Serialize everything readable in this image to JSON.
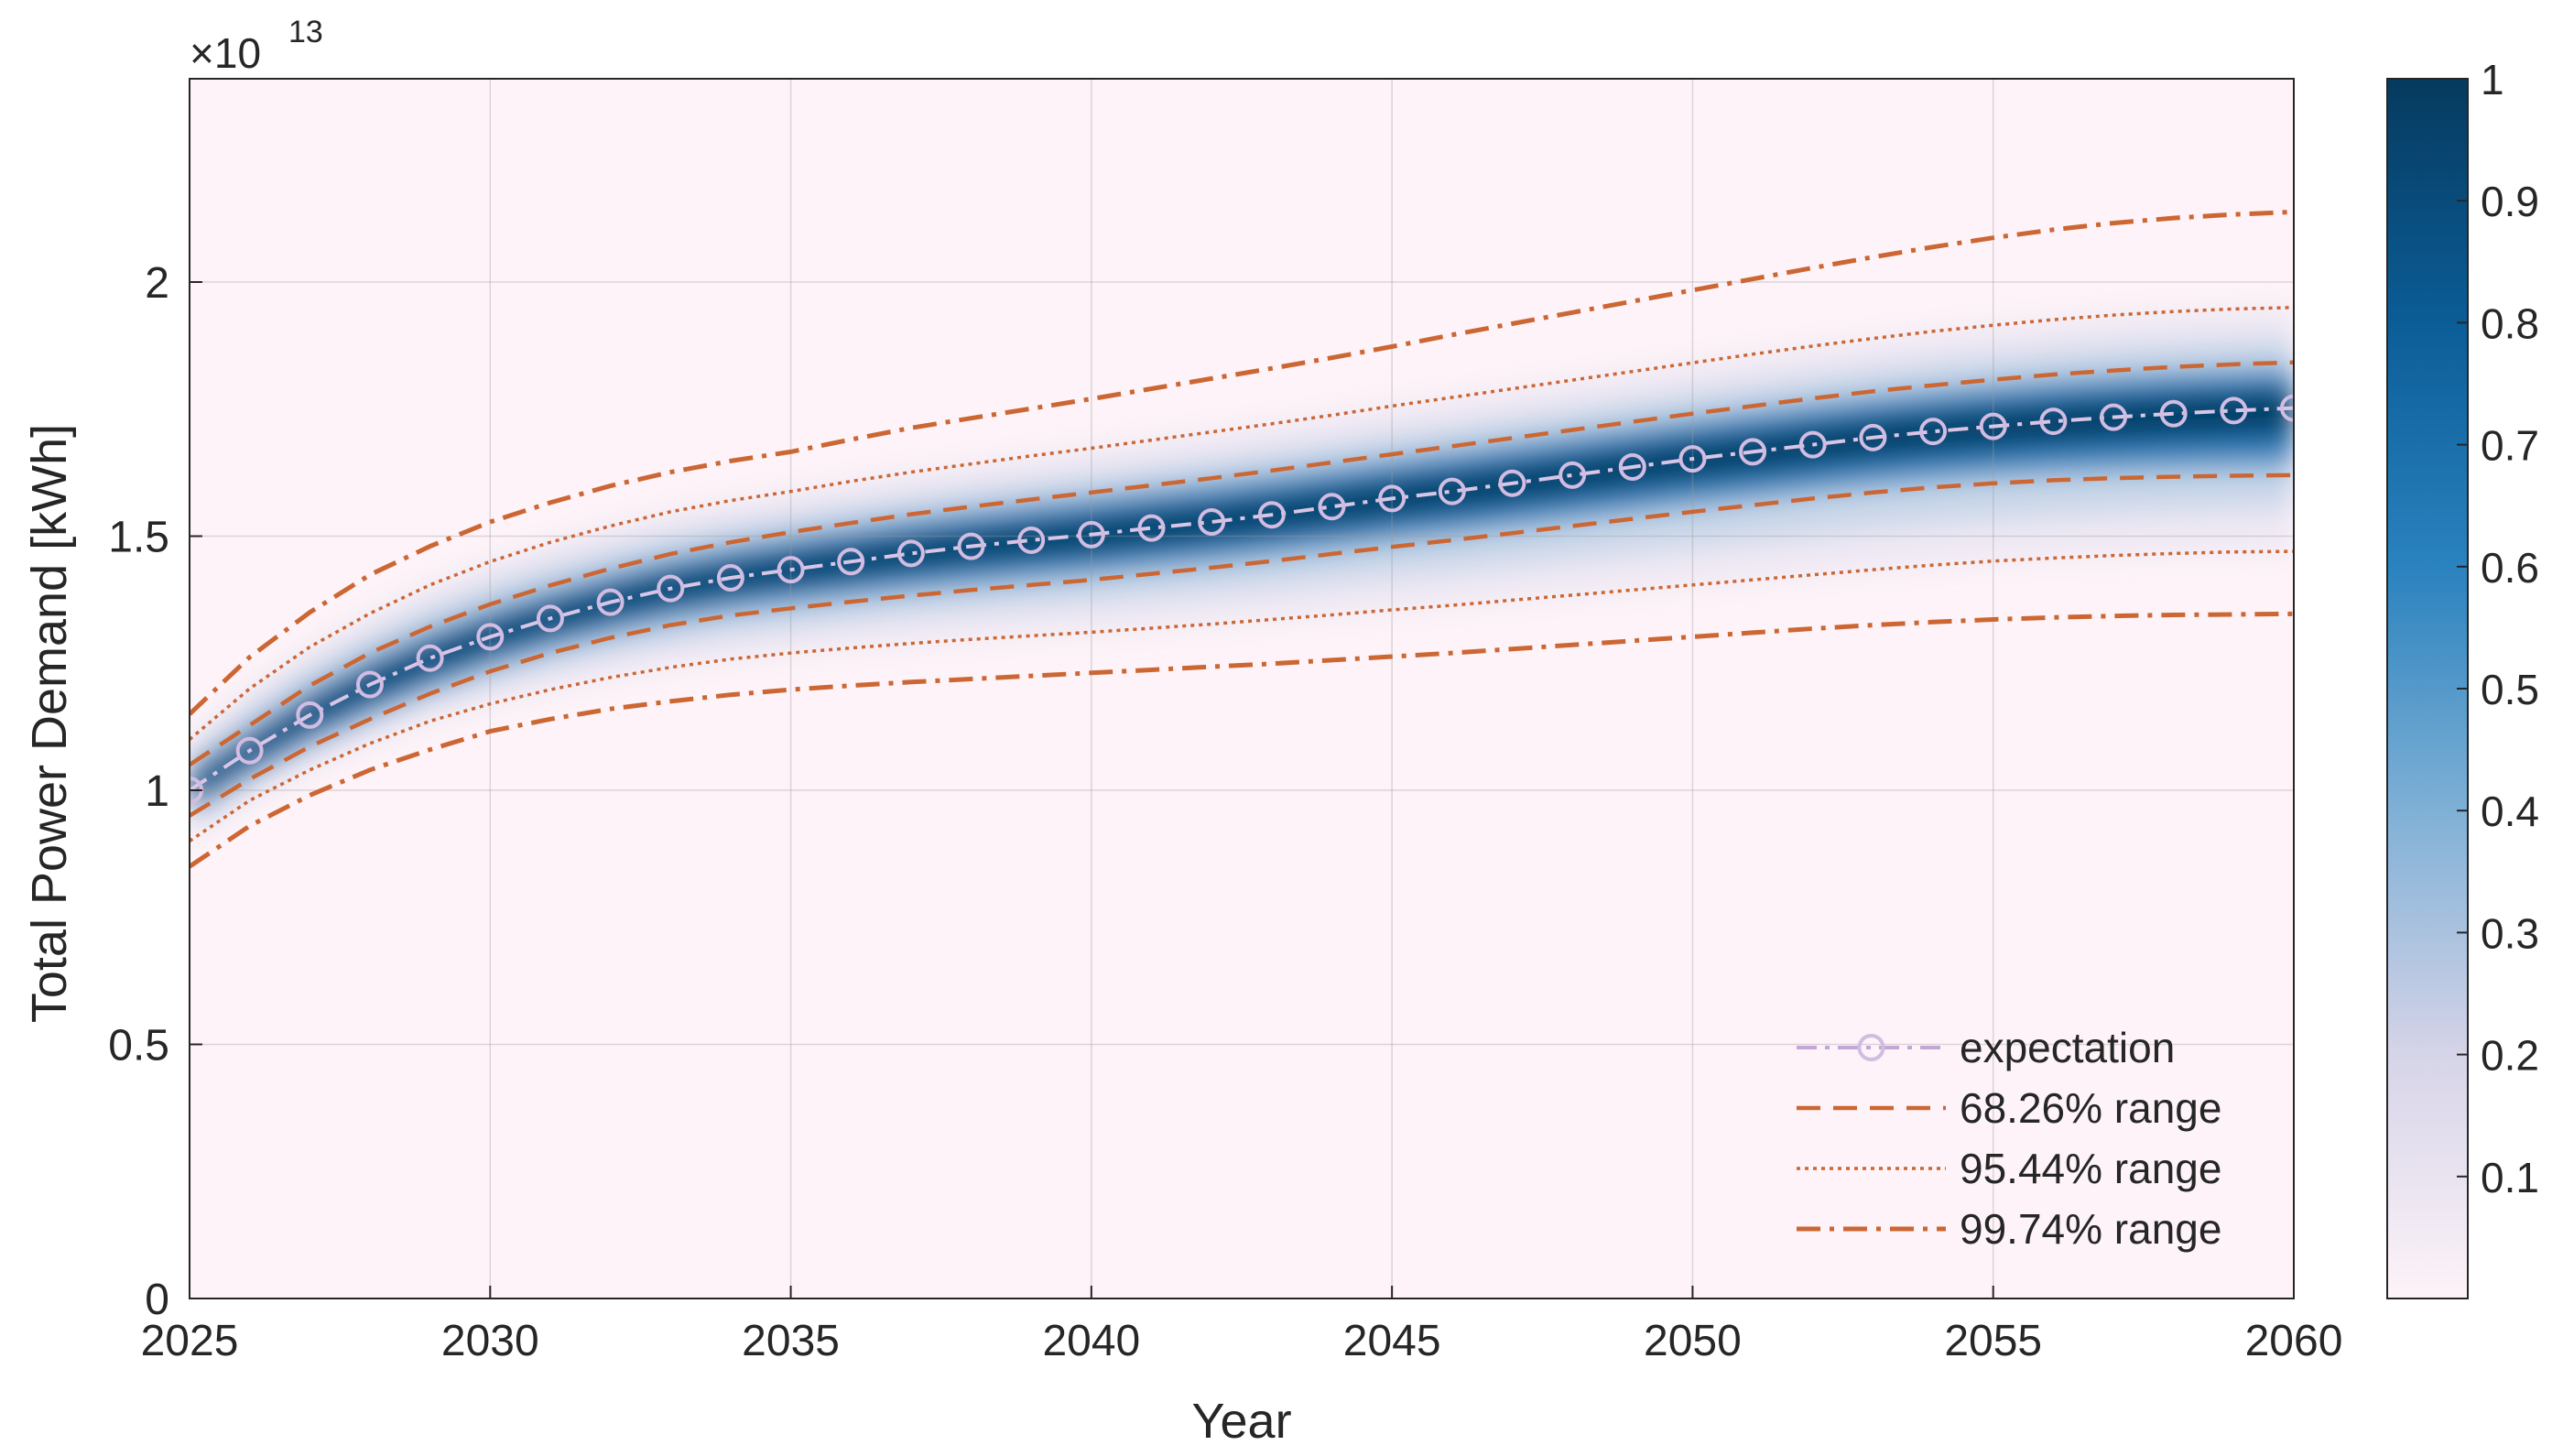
{
  "chart_data": {
    "type": "line",
    "title": "",
    "xlabel": "Year",
    "ylabel": "Total Power Demand [kWh]",
    "y_multiplier_base": "×10",
    "y_multiplier_exp": "13",
    "xlim": [
      2025,
      2060
    ],
    "ylim": [
      0,
      2.4
    ],
    "x_ticks": [
      2025,
      2030,
      2035,
      2040,
      2045,
      2050,
      2055,
      2060
    ],
    "x_tick_labels": [
      "2025",
      "2030",
      "2035",
      "2040",
      "2045",
      "2050",
      "2055",
      "2060"
    ],
    "y_ticks": [
      0,
      0.5,
      1,
      1.5,
      2
    ],
    "y_tick_labels": [
      "0",
      "0.5",
      "1",
      "1.5",
      "2"
    ],
    "grid": true,
    "background_color": "#fdf3f8",
    "x": [
      2025,
      2026,
      2027,
      2028,
      2029,
      2030,
      2031,
      2032,
      2033,
      2034,
      2035,
      2036,
      2037,
      2038,
      2039,
      2040,
      2041,
      2042,
      2043,
      2044,
      2045,
      2046,
      2047,
      2048,
      2049,
      2050,
      2051,
      2052,
      2053,
      2054,
      2055,
      2056,
      2057,
      2058,
      2059,
      2060
    ],
    "series": [
      {
        "name": "expectation",
        "style": "dashdot-circle",
        "color": "#c2a6d6",
        "values": [
          1.0,
          1.078,
          1.148,
          1.208,
          1.26,
          1.302,
          1.338,
          1.37,
          1.397,
          1.418,
          1.434,
          1.45,
          1.466,
          1.48,
          1.492,
          1.503,
          1.516,
          1.528,
          1.542,
          1.558,
          1.574,
          1.588,
          1.604,
          1.62,
          1.636,
          1.652,
          1.666,
          1.68,
          1.694,
          1.706,
          1.716,
          1.726,
          1.734,
          1.741,
          1.747,
          1.752
        ]
      },
      {
        "name": "68.26% range",
        "style": "dashed",
        "color": "#cc6633",
        "upper": [
          1.05,
          1.128,
          1.206,
          1.27,
          1.322,
          1.366,
          1.403,
          1.436,
          1.465,
          1.488,
          1.508,
          1.526,
          1.543,
          1.558,
          1.572,
          1.586,
          1.6,
          1.614,
          1.629,
          1.645,
          1.661,
          1.677,
          1.693,
          1.709,
          1.725,
          1.741,
          1.756,
          1.771,
          1.785,
          1.797,
          1.808,
          1.818,
          1.826,
          1.833,
          1.838,
          1.842
        ],
        "lower": [
          0.95,
          1.022,
          1.086,
          1.14,
          1.19,
          1.234,
          1.27,
          1.3,
          1.325,
          1.344,
          1.358,
          1.371,
          1.383,
          1.394,
          1.404,
          1.414,
          1.426,
          1.438,
          1.451,
          1.465,
          1.479,
          1.492,
          1.506,
          1.52,
          1.534,
          1.548,
          1.561,
          1.574,
          1.586,
          1.596,
          1.604,
          1.61,
          1.614,
          1.617,
          1.619,
          1.62
        ]
      },
      {
        "name": "95.44% range",
        "style": "dotted",
        "color": "#cc6633",
        "upper": [
          1.1,
          1.2,
          1.282,
          1.348,
          1.404,
          1.45,
          1.488,
          1.52,
          1.548,
          1.57,
          1.588,
          1.608,
          1.626,
          1.642,
          1.658,
          1.673,
          1.689,
          1.705,
          1.721,
          1.738,
          1.756,
          1.773,
          1.79,
          1.807,
          1.824,
          1.841,
          1.858,
          1.874,
          1.889,
          1.903,
          1.915,
          1.926,
          1.935,
          1.942,
          1.947,
          1.95
        ]
      },
      {
        "name": "99.74% range",
        "style": "dashdot",
        "color": "#cc6633",
        "upper": [
          1.15,
          1.262,
          1.35,
          1.424,
          1.48,
          1.528,
          1.566,
          1.599,
          1.626,
          1.648,
          1.666,
          1.69,
          1.713,
          1.732,
          1.751,
          1.77,
          1.79,
          1.81,
          1.83,
          1.851,
          1.873,
          1.896,
          1.918,
          1.94,
          1.962,
          1.984,
          2.006,
          2.028,
          2.049,
          2.069,
          2.087,
          2.103,
          2.116,
          2.126,
          2.133,
          2.138
        ],
        "lower": [
          0.85,
          0.93,
          0.99,
          1.04,
          1.08,
          1.116,
          1.14,
          1.16,
          1.175,
          1.188,
          1.198,
          1.206,
          1.213,
          1.219,
          1.225,
          1.231,
          1.237,
          1.243,
          1.249,
          1.256,
          1.263,
          1.27,
          1.278,
          1.286,
          1.294,
          1.302,
          1.31,
          1.318,
          1.325,
          1.331,
          1.336,
          1.34,
          1.343,
          1.345,
          1.346,
          1.347
        ]
      }
    ],
    "dotted_lower": [
      0.9,
      0.98,
      1.04,
      1.092,
      1.136,
      1.17,
      1.198,
      1.222,
      1.242,
      1.258,
      1.27,
      1.28,
      1.289,
      1.297,
      1.304,
      1.311,
      1.319,
      1.327,
      1.336,
      1.345,
      1.355,
      1.364,
      1.374,
      1.384,
      1.394,
      1.404,
      1.414,
      1.424,
      1.434,
      1.443,
      1.451,
      1.457,
      1.462,
      1.466,
      1.469,
      1.47
    ],
    "legend": {
      "position": "bottom-right",
      "entries": [
        "expectation",
        "68.26% range",
        "95.44% range",
        "99.74% range"
      ]
    },
    "colorbar": {
      "min": 0,
      "max": 1,
      "ticks": [
        0.1,
        0.2,
        0.3,
        0.4,
        0.5,
        0.6,
        0.7,
        0.8,
        0.9,
        1
      ],
      "tick_labels": [
        "0.1",
        "0.2",
        "0.3",
        "0.4",
        "0.5",
        "0.6",
        "0.7",
        "0.8",
        "0.9",
        "1"
      ],
      "colormap": [
        "#fdf3f8",
        "#d6d4e8",
        "#7fb0d6",
        "#2a82be",
        "#0b5d97",
        "#063a5e"
      ]
    }
  }
}
